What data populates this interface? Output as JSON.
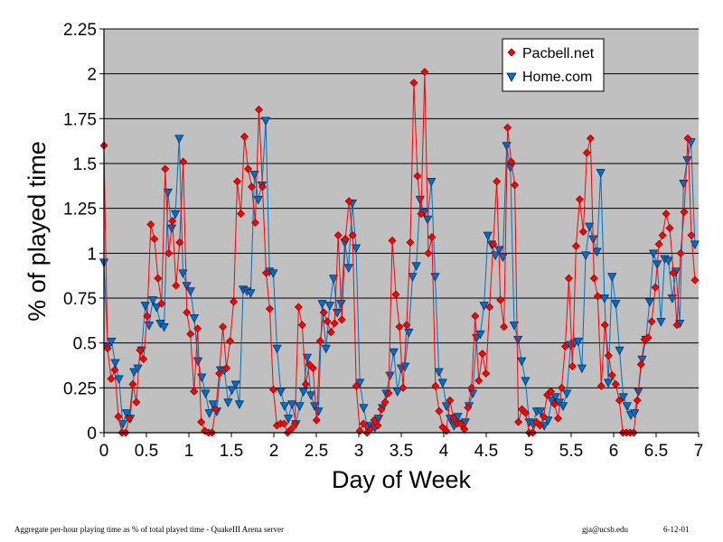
{
  "chart_data": {
    "type": "line",
    "xlabel": "Day of Week",
    "ylabel": "% of played time",
    "xlim": [
      0,
      7
    ],
    "ylim": [
      0,
      2.25
    ],
    "xticks": [
      "0",
      "0.5",
      "1",
      "1.5",
      "2",
      "2.5",
      "3",
      "3.5",
      "4",
      "4.5",
      "5",
      "5.5",
      "6",
      "6.5",
      "7"
    ],
    "yticks": [
      "0",
      "0.25",
      "0.5",
      "0.75",
      "1",
      "1.25",
      "1.5",
      "1.75",
      "2",
      "2.25"
    ],
    "grid": "horizontal",
    "legend_position": "top-right",
    "plot_background": "#c0c0c0",
    "series": [
      {
        "name": "Pacbell.net",
        "color": "#ff0000",
        "marker": "diamond",
        "values": [
          1.6,
          0.47,
          0.3,
          0.35,
          0.09,
          0,
          0,
          0.08,
          0.27,
          0.17,
          0.46,
          0.41,
          0.65,
          1.16,
          1.08,
          0.86,
          0.72,
          1.47,
          1.0,
          1.18,
          0.82,
          1.06,
          1.51,
          0.67,
          0.55,
          0.23,
          0.58,
          0.06,
          0.01,
          0,
          0,
          0.13,
          0.33,
          0.59,
          0.36,
          0.51,
          0.73,
          1.4,
          1.22,
          1.65,
          1.47,
          1.37,
          1.17,
          1.8,
          1.37,
          0.89,
          0.69,
          0.24,
          0.04,
          0.05,
          0.05,
          0,
          0.02,
          0.05,
          0.7,
          0.6,
          0.27,
          0.38,
          0.36,
          0.07,
          0.51,
          0.67,
          0.62,
          0.56,
          0.61,
          1.1,
          0.63,
          1.08,
          1.29,
          1.1,
          0.26,
          0.01,
          0.05,
          0,
          0.02,
          0.07,
          0.04,
          0.13,
          0.17,
          0.22,
          1.07,
          0.77,
          0.59,
          0.25,
          0.6,
          1.06,
          1.95,
          1.43,
          1.22,
          2.01,
          1.0,
          1.09,
          0.26,
          0.12,
          0.03,
          0.01,
          0.18,
          0.08,
          0.05,
          0.05,
          0.02,
          0.14,
          0.25,
          0.65,
          0.29,
          0.44,
          0.33,
          0.7,
          1.05,
          1.4,
          0.74,
          0.59,
          1.7,
          1.51,
          1.38,
          0.06,
          0.13,
          0.11,
          0,
          0,
          0.06,
          0.04,
          0.09,
          0.21,
          0.23,
          0.16,
          0.08,
          0.25,
          0.48,
          0.86,
          0.37,
          1.04,
          1.3,
          1.12,
          1.56,
          1.64,
          0.86,
          0.76,
          0.26,
          0.6,
          0.43,
          0.32,
          0.27,
          0.18,
          0,
          0,
          0,
          0,
          0.18,
          0.38,
          0.52,
          0.53,
          0.62,
          0.81,
          1.05,
          1.1,
          1.22,
          1.14,
          0.89,
          0.6,
          1.0,
          1.23,
          1.64,
          1.1,
          0.85
        ]
      },
      {
        "name": "Home.com",
        "color": "#0070c0",
        "marker": "triangle-down",
        "values": [
          0.95,
          0.48,
          0.51,
          0.39,
          0.3,
          0.05,
          0.11,
          0.08,
          0.34,
          0.36,
          0.46,
          0.71,
          0.6,
          0.74,
          0.7,
          0.61,
          0.59,
          1.34,
          1.14,
          1.22,
          1.64,
          0.89,
          0.82,
          0.79,
          0.64,
          0.4,
          0.31,
          0.22,
          0.11,
          0.16,
          0.12,
          0.35,
          0.35,
          0.17,
          0.24,
          0.27,
          0.16,
          0.8,
          0.79,
          0.78,
          1.44,
          1.3,
          1.38,
          1.74,
          0.9,
          0.89,
          0.47,
          0.23,
          0.15,
          0.08,
          0.16,
          0.05,
          0.15,
          0.23,
          0.42,
          0.21,
          0.15,
          0.12,
          0.72,
          0.47,
          0.71,
          0.86,
          0.67,
          0.72,
          1.06,
          0.92,
          1.28,
          1.03,
          0.28,
          0.14,
          0.03,
          0.04,
          0.03,
          0.08,
          0.14,
          0.22,
          0.32,
          0.45,
          0.23,
          0.36,
          0.37,
          0.56,
          0.87,
          0.93,
          1.3,
          1.23,
          1.19,
          1.4,
          0.87,
          0.34,
          0.28,
          0.15,
          0.08,
          0.04,
          0.09,
          0.05,
          0.06,
          0.15,
          0.22,
          0.53,
          0.55,
          0.71,
          1.1,
          1.05,
          0.99,
          1.02,
          0.98,
          1.6,
          1.48,
          0.6,
          0.52,
          0.4,
          0.29,
          0.06,
          0.05,
          0.12,
          0.12,
          0.04,
          0.07,
          0.18,
          0.2,
          0.17,
          0.15,
          0.22,
          0.49,
          0.5,
          0.51,
          0.36,
          0.99,
          1.15,
          1.08,
          1.01,
          1.45,
          0.75,
          0.28,
          0.87,
          0.72,
          0.46,
          0.2,
          0.15,
          0.1,
          0.11,
          0.23,
          0.41,
          0.52,
          0.73,
          1.0,
          0.94,
          0.62,
          0.97,
          0.96,
          0.75,
          0.9,
          0.61,
          1.39,
          1.52,
          1.62,
          1.05
        ]
      }
    ]
  },
  "footer": {
    "caption": "Aggregate per-hour playing time as % of total played time - QuakeIII Arena server",
    "email": "gja@ucsb.edu",
    "date": "6-12-01"
  }
}
